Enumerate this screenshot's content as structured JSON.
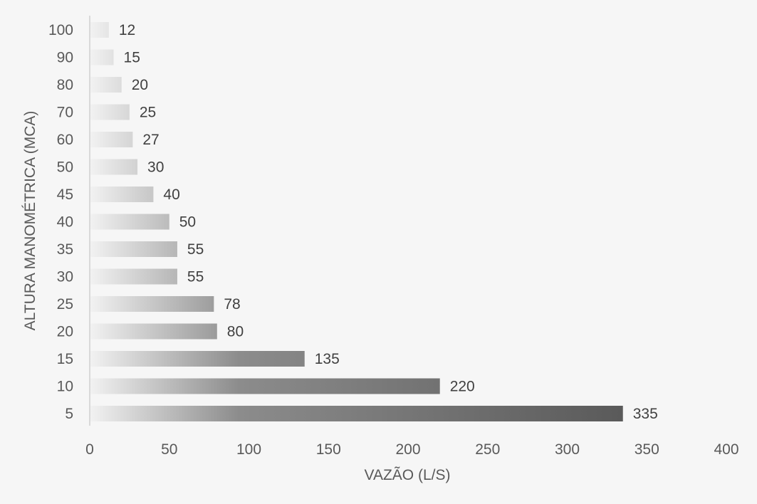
{
  "chart_data": {
    "type": "bar",
    "orientation": "horizontal",
    "categories": [
      "100",
      "90",
      "80",
      "70",
      "60",
      "50",
      "45",
      "40",
      "35",
      "30",
      "25",
      "20",
      "15",
      "10",
      "5"
    ],
    "values": [
      12,
      15,
      20,
      25,
      27,
      30,
      40,
      50,
      55,
      55,
      78,
      80,
      135,
      220,
      335
    ],
    "data_labels": [
      "12",
      "15",
      "20",
      "25",
      "27",
      "30",
      "40",
      "50",
      "55",
      "55",
      "78",
      "80",
      "135",
      "220",
      "335"
    ],
    "xlabel": "VAZÃO (L/S)",
    "ylabel": "ALTURA MANOMÉTRICA (MCA)",
    "xlim": [
      0,
      400
    ],
    "xticks": [
      "0",
      "50",
      "100",
      "150",
      "200",
      "250",
      "300",
      "350",
      "400"
    ],
    "grid": false,
    "legend": "none",
    "colors": {
      "background": "#f6f6f6",
      "bar_gradient_start": "#f2f2f2",
      "bar_gradient_mid": "#8c8c8c",
      "bar_gradient_end": "#5a5a5a",
      "axis_line": "#d9d9d9",
      "text": "#595959"
    }
  }
}
